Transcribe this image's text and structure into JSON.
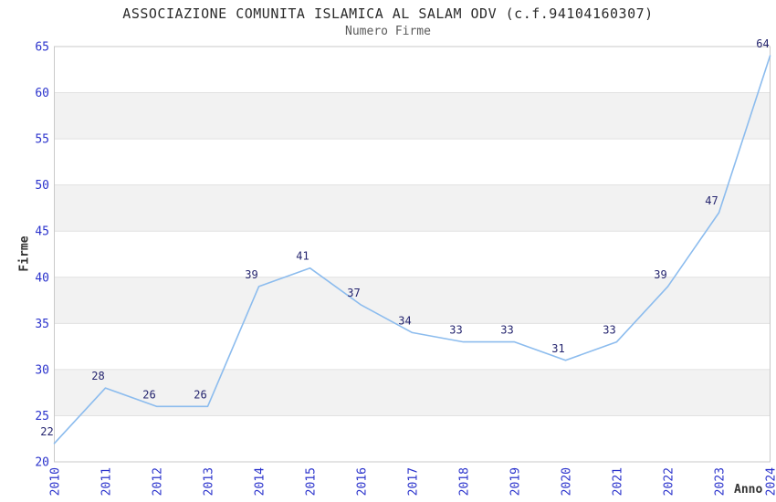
{
  "chart_data": {
    "type": "line",
    "title": "ASSOCIAZIONE COMUNITA ISLAMICA AL SALAM ODV (c.f.94104160307)",
    "subtitle": "Numero Firme",
    "xlabel": "Anno",
    "ylabel": "Firme",
    "x": [
      2010,
      2011,
      2012,
      2013,
      2014,
      2015,
      2016,
      2017,
      2018,
      2019,
      2020,
      2021,
      2022,
      2023,
      2024
    ],
    "values": [
      22,
      28,
      26,
      26,
      39,
      41,
      37,
      34,
      33,
      33,
      31,
      33,
      39,
      47,
      64
    ],
    "series_name": "Numero Firme",
    "ylim": [
      20,
      65
    ],
    "yticks": [
      20,
      25,
      30,
      35,
      40,
      45,
      50,
      55,
      60,
      65
    ],
    "grid": "horizontal",
    "legend_position": "none",
    "point_labels_visible": true,
    "shaded_bands": [
      [
        25,
        30
      ],
      [
        35,
        40
      ],
      [
        45,
        50
      ],
      [
        55,
        60
      ]
    ],
    "colors": {
      "line": "#8cbcee",
      "point_label": "#24246e",
      "tick_label": "#2b33cc",
      "band_fill": "#f2f2f2",
      "gridline": "#e1e1e1",
      "plot_border": "#c9c9c9",
      "title": "#2b2b2b",
      "subtitle": "#5a5a5a",
      "axis_title": "#333333",
      "background": "#ffffff"
    }
  }
}
